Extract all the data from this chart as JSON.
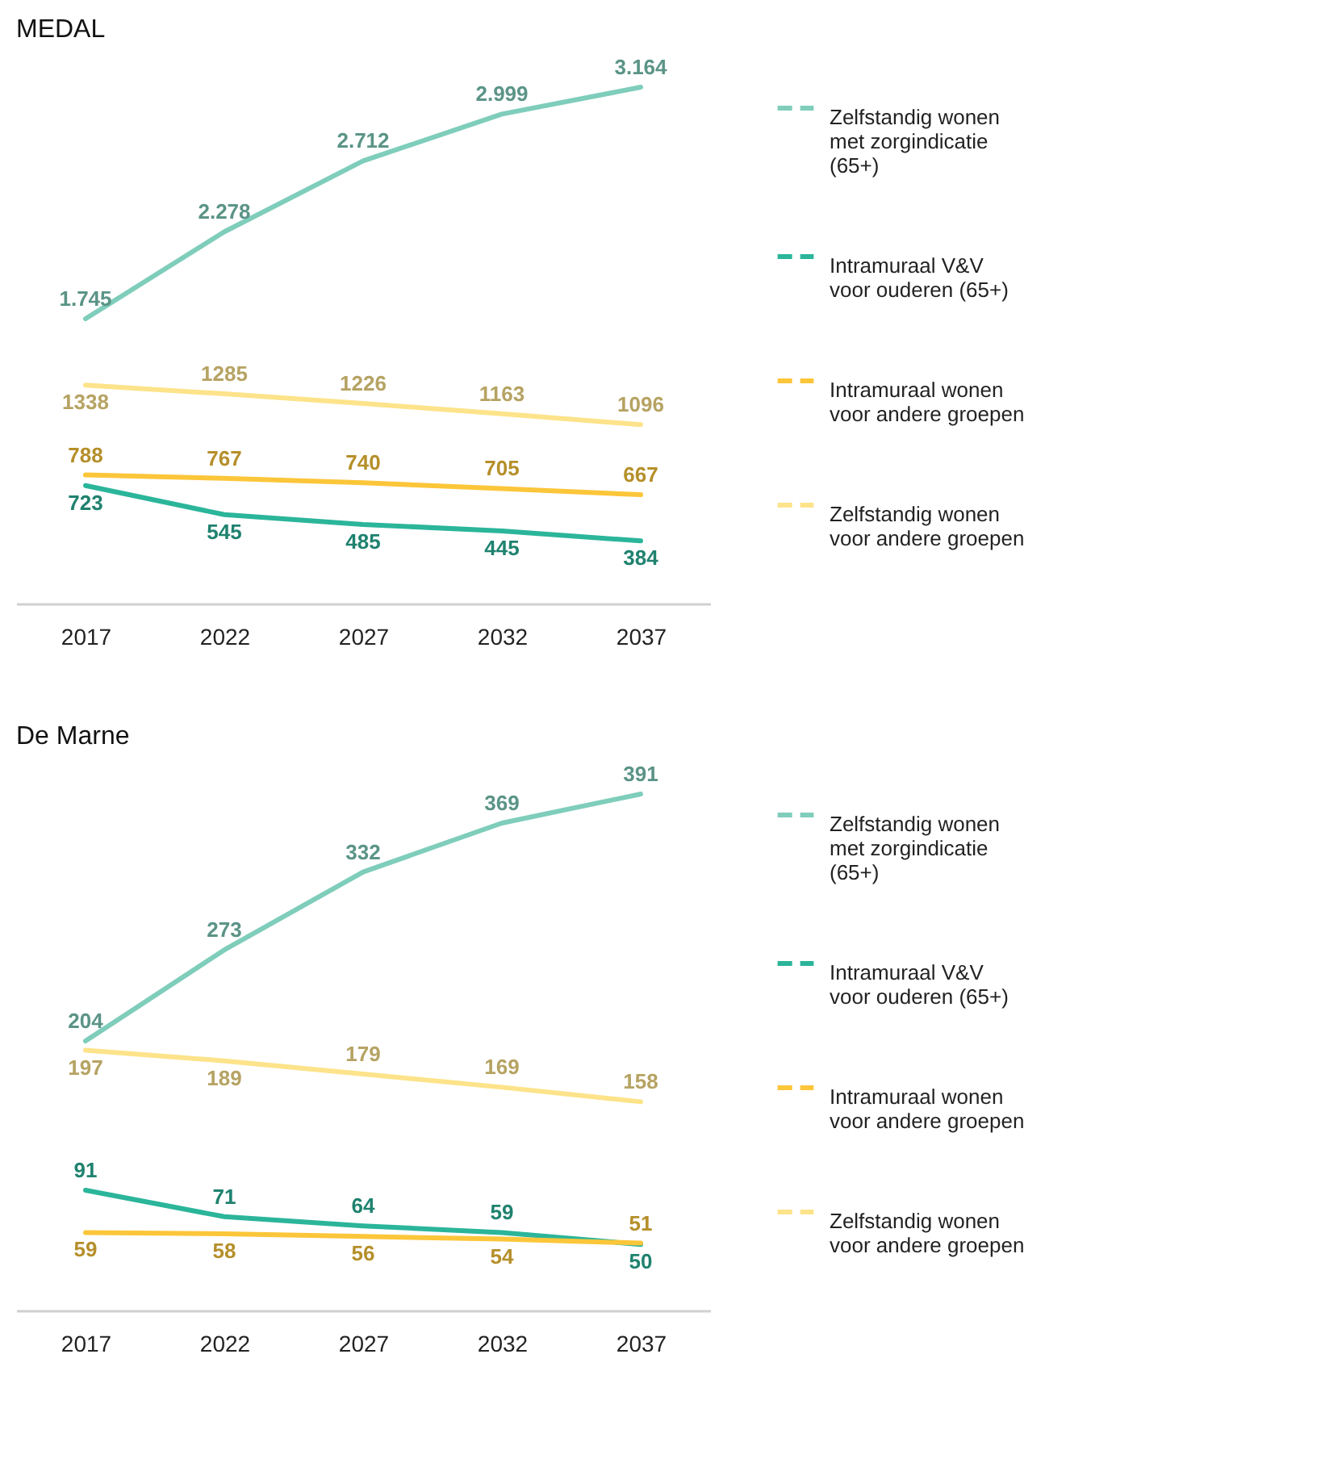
{
  "chart_data": [
    {
      "type": "line",
      "title": "MEDAL",
      "categories": [
        "2017",
        "2022",
        "2027",
        "2032",
        "2037"
      ],
      "legend": "right",
      "series": [
        {
          "name": "Zelfstandig wonen met zorgindicatie (65+)",
          "color": "#7fcdbb",
          "values": [
            1745,
            2278,
            2712,
            2999,
            3164
          ],
          "value_labels": [
            "1.745",
            "2.278",
            "2.712",
            "2.999",
            "3.164"
          ]
        },
        {
          "name": "Intramuraal V&V voor ouderen (65+)",
          "color": "#2bb59a",
          "values": [
            723,
            545,
            485,
            445,
            384
          ],
          "value_labels": [
            "723",
            "545",
            "485",
            "445",
            "384"
          ]
        },
        {
          "name": "Intramuraal wonen voor andere groepen",
          "color": "#fcc63a",
          "values": [
            788,
            767,
            740,
            705,
            667
          ],
          "value_labels": [
            "788",
            "767",
            "740",
            "705",
            "667"
          ]
        },
        {
          "name": "Zelfstandig wonen voor andere groepen",
          "color": "#fde38a",
          "values": [
            1338,
            1285,
            1226,
            1163,
            1096
          ],
          "value_labels": [
            "1338",
            "1285",
            "1226",
            "1163",
            "1096"
          ]
        }
      ]
    },
    {
      "type": "line",
      "title": "De Marne",
      "categories": [
        "2017",
        "2022",
        "2027",
        "2032",
        "2037"
      ],
      "legend": "right",
      "series": [
        {
          "name": "Zelfstandig wonen met zorgindicatie (65+)",
          "color": "#7fcdbb",
          "values": [
            204,
            273,
            332,
            369,
            391
          ],
          "value_labels": [
            "204",
            "273",
            "332",
            "369",
            "391"
          ]
        },
        {
          "name": "Intramuraal V&V voor ouderen (65+)",
          "color": "#2bb59a",
          "values": [
            91,
            71,
            64,
            59,
            50
          ],
          "value_labels": [
            "91",
            "71",
            "64",
            "59",
            "50"
          ]
        },
        {
          "name": "Intramuraal wonen voor andere groepen",
          "color": "#fcc63a",
          "values": [
            59,
            58,
            56,
            54,
            51
          ],
          "value_labels": [
            "59",
            "58",
            "56",
            "54",
            "51"
          ]
        },
        {
          "name": "Zelfstandig wonen voor andere groepen",
          "color": "#fde38a",
          "values": [
            197,
            189,
            179,
            169,
            158
          ],
          "value_labels": [
            "197",
            "189",
            "179",
            "169",
            "158"
          ]
        }
      ]
    }
  ]
}
